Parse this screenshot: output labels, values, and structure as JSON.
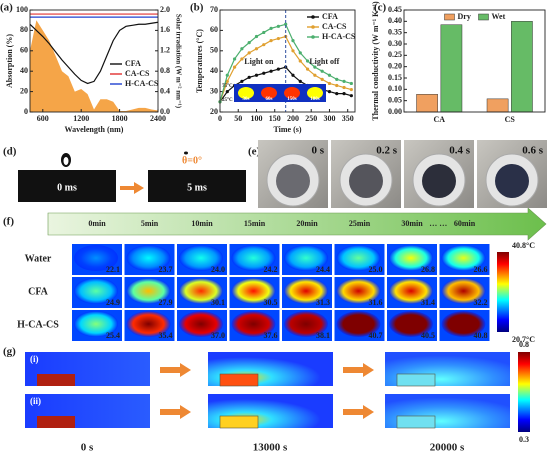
{
  "chart_data": [
    {
      "type": "line",
      "panel_label": "(a)",
      "xlabel": "Wavelength (nm)",
      "ylabel": "Absorption (%)",
      "y2label": "Solar irradiation (W m⁻² nm⁻¹)",
      "x": [
        400,
        500,
        600,
        700,
        800,
        900,
        1000,
        1100,
        1200,
        1300,
        1400,
        1500,
        1600,
        1700,
        1800,
        1900,
        2000,
        2100,
        2200,
        2300,
        2400
      ],
      "xlim": [
        400,
        2400
      ],
      "xticks": [
        600,
        1200,
        1800,
        2400
      ],
      "ylim": [
        0,
        100
      ],
      "yticks": [
        0,
        20,
        40,
        60,
        80,
        100
      ],
      "y2lim": [
        0,
        2
      ],
      "y2ticks": [
        {
          "value": 0,
          "label": "0.0"
        },
        0.4,
        0.8,
        1.2,
        1.6,
        {
          "value": 2,
          "label": "2.0"
        }
      ],
      "legend": "lower right",
      "series": [
        {
          "name": "CFA",
          "color": "#111111",
          "values": [
            86,
            80,
            74,
            67,
            59,
            51,
            44,
            37,
            31,
            28,
            30,
            40,
            55,
            70,
            80,
            84,
            85,
            86,
            86,
            87,
            88
          ]
        },
        {
          "name": "CA-CS",
          "color": "#e03030",
          "values": [
            96,
            96,
            96,
            96,
            96,
            96,
            96,
            96,
            96,
            96,
            96,
            96,
            96,
            96,
            96,
            96,
            96,
            96,
            96,
            96,
            96
          ]
        },
        {
          "name": "H-CA-CS",
          "color": "#2040d0",
          "values": [
            93,
            93,
            93,
            93,
            93,
            93,
            93,
            93,
            93,
            93,
            93,
            93,
            93,
            93,
            93,
            93,
            93,
            93,
            93,
            93,
            93
          ]
        },
        {
          "name": "Solar",
          "style": "area",
          "axis": "y2",
          "color": "#f5a548",
          "values": [
            1.2,
            1.8,
            1.6,
            1.4,
            1.1,
            0.8,
            0.7,
            0.4,
            0.45,
            0.35,
            0.05,
            0.25,
            0.25,
            0.2,
            0.02,
            0.02,
            0.05,
            0.08,
            0.08,
            0.05,
            0.03
          ]
        }
      ]
    },
    {
      "type": "line",
      "panel_label": "(b)",
      "xlabel": "Time (s)",
      "ylabel": "Temperatures (°C)",
      "x": [
        0,
        20,
        40,
        60,
        80,
        100,
        120,
        140,
        160,
        180,
        200,
        220,
        240,
        260,
        280,
        300,
        320,
        340,
        360
      ],
      "xlim": [
        0,
        370
      ],
      "xticks": [
        0,
        50,
        100,
        150,
        200,
        250,
        300,
        350
      ],
      "ylim": [
        20,
        70
      ],
      "yticks": [
        20,
        30,
        40,
        50,
        60,
        70
      ],
      "legend": "upper right",
      "vline": 180,
      "annotations": [
        "Light on",
        "Light off"
      ],
      "inset_scale": [
        "75°C",
        "25°C"
      ],
      "inset_labels": [
        "30s",
        "60s",
        "150s",
        "180s"
      ],
      "series": [
        {
          "name": "CFA",
          "color": "#111111",
          "marker": true,
          "values": [
            25,
            30,
            33,
            35,
            37,
            38,
            39,
            40,
            41,
            42,
            38,
            35,
            33,
            32,
            31,
            30,
            29,
            29,
            28
          ]
        },
        {
          "name": "CA-CS",
          "color": "#e0a030",
          "marker": true,
          "values": [
            25,
            35,
            42,
            46,
            49,
            51,
            53,
            55,
            56,
            57,
            50,
            45,
            41,
            38,
            36,
            34,
            33,
            32,
            31
          ]
        },
        {
          "name": "H-CA-CS",
          "color": "#4caf6e",
          "marker": true,
          "values": [
            25,
            38,
            46,
            51,
            54,
            57,
            59,
            61,
            62,
            63,
            55,
            49,
            45,
            42,
            40,
            38,
            36,
            35,
            34
          ]
        }
      ]
    },
    {
      "type": "bar",
      "panel_label": "(c)",
      "ylabel": "Thermal conductivity (W m⁻¹ K⁻¹)",
      "categories": [
        "CA",
        "CS"
      ],
      "ylim": [
        0,
        0.45
      ],
      "yticks": [
        {
          "value": 0,
          "label": "0.00"
        },
        0.05,
        {
          "value": 0.1,
          "label": "0.10"
        },
        0.15,
        {
          "value": 0.2,
          "label": "0.20"
        },
        0.25,
        {
          "value": 0.3,
          "label": "0.30"
        },
        0.35,
        {
          "value": 0.4,
          "label": "0.40"
        },
        0.45
      ],
      "legend": "upper center",
      "series": [
        {
          "name": "Dry",
          "color": "#f0a060",
          "values": [
            0.078,
            0.058
          ]
        },
        {
          "name": "Wet",
          "color": "#66bb66",
          "values": [
            0.385,
            0.4
          ]
        }
      ]
    }
  ],
  "panel_d": {
    "label": "(d)",
    "frames": [
      "0 ms",
      "5 ms"
    ],
    "angle": "θ=0°"
  },
  "panel_e": {
    "label": "(e)",
    "frames": [
      "0 s",
      "0.2 s",
      "0.4 s",
      "0.6 s"
    ]
  },
  "panel_f": {
    "label": "(f)",
    "times": [
      "0min",
      "5min",
      "10min",
      "15min",
      "20min",
      "25min",
      "30min",
      "60min"
    ],
    "ellipsis": "… …",
    "rows": [
      {
        "name": "Water",
        "temps": [
          "22.1",
          "23.7",
          "24.0",
          "24.2",
          "24.4",
          "25.0",
          "26.8",
          "26.6"
        ]
      },
      {
        "name": "CFA",
        "temps": [
          "24.9",
          "27.9",
          "30.1",
          "30.5",
          "31.3",
          "31.6",
          "31.4",
          "32.2"
        ]
      },
      {
        "name": "H-CA-CS",
        "temps": [
          "25.4",
          "35.4",
          "37.0",
          "37.6",
          "38.1",
          "40.7",
          "40.5",
          "40.8"
        ]
      }
    ],
    "scale_max": "40.8°C",
    "scale_min": "20.7°C"
  },
  "panel_g": {
    "label": "(g)",
    "rows": [
      "(i)",
      "(ii)"
    ],
    "times": [
      "0 s",
      "13000 s",
      "20000 s"
    ],
    "scale_max": "0.8",
    "scale_min": "0.3"
  }
}
